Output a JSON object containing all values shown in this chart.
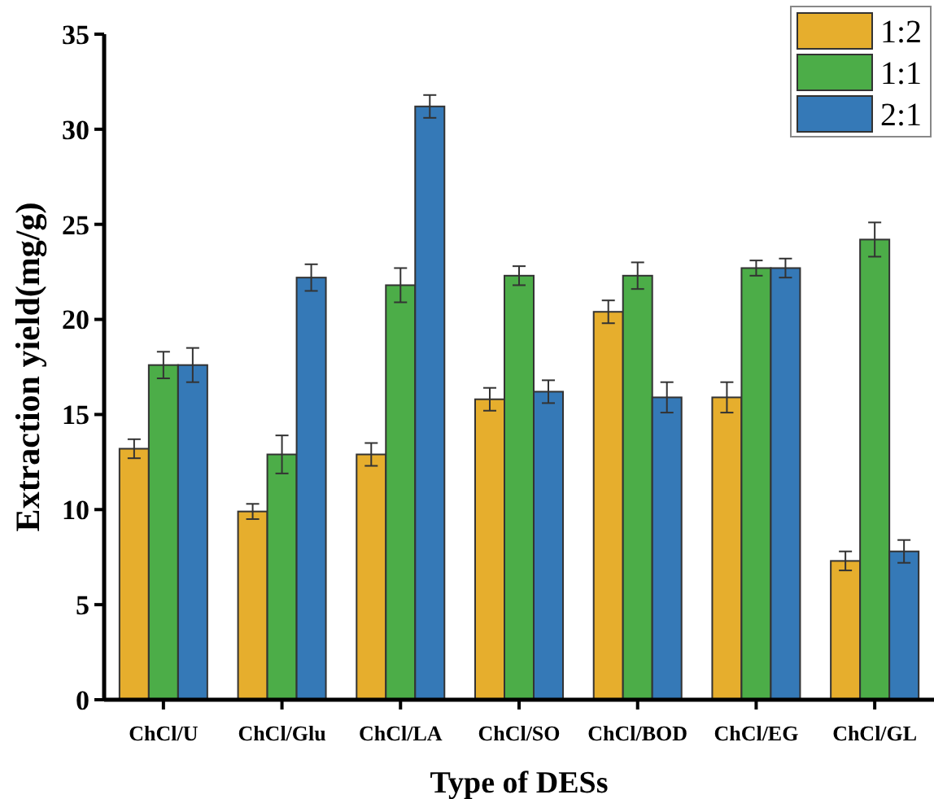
{
  "chart_data": {
    "type": "bar",
    "xlabel": "Type of DESs",
    "ylabel": "Extraction yield(mg/g)",
    "categories": [
      "ChCl/U",
      "ChCl/Glu",
      "ChCl/LA",
      "ChCl/SO",
      "ChCl/BOD",
      "ChCl/EG",
      "ChCl/GL"
    ],
    "series": [
      {
        "name": "1:2",
        "color": "#e6ae2d",
        "values": [
          13.2,
          9.9,
          12.9,
          15.8,
          20.4,
          15.9,
          7.3
        ],
        "errors": [
          0.5,
          0.4,
          0.6,
          0.6,
          0.6,
          0.8,
          0.5
        ]
      },
      {
        "name": "1:1",
        "color": "#4cad48",
        "values": [
          17.6,
          12.9,
          21.8,
          22.3,
          22.3,
          22.7,
          24.2
        ],
        "errors": [
          0.7,
          1.0,
          0.9,
          0.5,
          0.7,
          0.4,
          0.9
        ]
      },
      {
        "name": "2:1",
        "color": "#3579b7",
        "values": [
          17.6,
          22.2,
          31.2,
          16.2,
          15.9,
          22.7,
          7.8
        ],
        "errors": [
          0.9,
          0.7,
          0.6,
          0.6,
          0.8,
          0.5,
          0.6
        ]
      }
    ],
    "ylim": [
      0,
      35
    ],
    "yticks": [
      0,
      5,
      10,
      15,
      20,
      25,
      30,
      35
    ],
    "grid": false,
    "legend": "top right"
  }
}
